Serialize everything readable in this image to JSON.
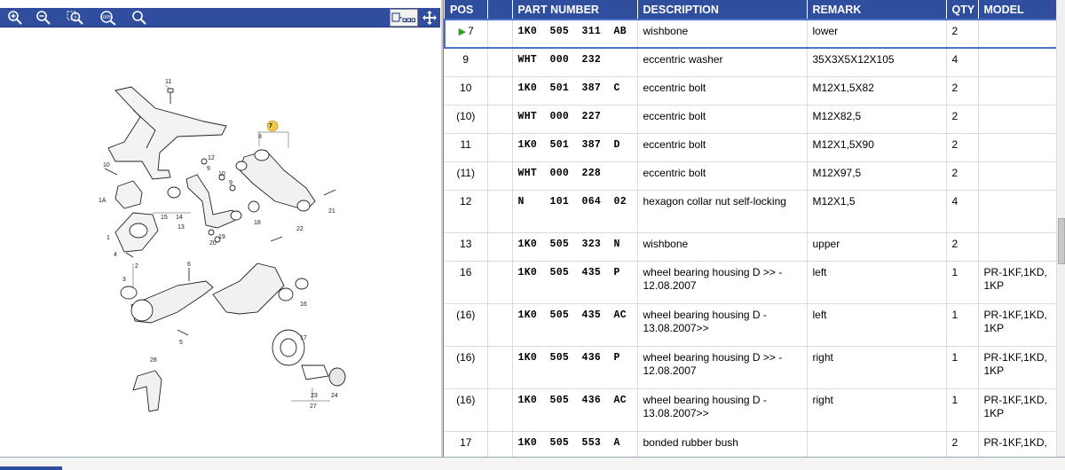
{
  "toolbar": {
    "buttons": [
      {
        "name": "zoom-in",
        "icon": "zoom-in-icon"
      },
      {
        "name": "zoom-out",
        "icon": "zoom-out-icon"
      },
      {
        "name": "zoom-area",
        "icon": "zoom-area-icon"
      },
      {
        "name": "zoom-100",
        "icon": "zoom-100-icon",
        "label": "100%"
      },
      {
        "name": "search",
        "icon": "search-icon"
      }
    ],
    "right_buttons": [
      {
        "name": "hotspot-list",
        "icon": "hotspot-list-icon"
      },
      {
        "name": "split-resize",
        "icon": "arrow-cross-icon"
      }
    ]
  },
  "diagram": {
    "labels": [
      "11",
      "7",
      "8",
      "10",
      "12",
      "9",
      "10",
      "9",
      "1A",
      "15",
      "14",
      "13",
      "19",
      "20",
      "18",
      "21",
      "22",
      "16",
      "1",
      "4",
      "2",
      "3",
      "6",
      "5",
      "17",
      "28",
      "23",
      "24",
      "27"
    ],
    "highlight_label": "7"
  },
  "table": {
    "headers": {
      "pos": "POS",
      "flag": "",
      "part_number": "PART NUMBER",
      "description": "DESCRIPTION",
      "remark": "REMARK",
      "qty": "QTY",
      "model": "MODEL"
    },
    "rows": [
      {
        "pos": "7",
        "part_number": "1K0  505  311  AB",
        "description": "wishbone",
        "remark": "lower",
        "qty": "2",
        "model": "",
        "selected": true
      },
      {
        "pos": "9",
        "part_number": "WHT  000  232",
        "description": "eccentric washer",
        "remark": "35X3X5X12X105",
        "qty": "4",
        "model": ""
      },
      {
        "pos": "10",
        "part_number": "1K0  501  387  C",
        "description": "eccentric bolt",
        "remark": "M12X1,5X82",
        "qty": "2",
        "model": ""
      },
      {
        "pos": "(10)",
        "part_number": "WHT  000  227",
        "description": "eccentric bolt",
        "remark": "M12X82,5",
        "qty": "2",
        "model": ""
      },
      {
        "pos": "11",
        "part_number": "1K0  501  387  D",
        "description": "eccentric bolt",
        "remark": "M12X1,5X90",
        "qty": "2",
        "model": ""
      },
      {
        "pos": "(11)",
        "part_number": "WHT  000  228",
        "description": "eccentric bolt",
        "remark": "M12X97,5",
        "qty": "2",
        "model": ""
      },
      {
        "pos": "12",
        "part_number": "N    101  064  02",
        "description": "hexagon collar nut self-locking",
        "remark": "M12X1,5",
        "qty": "4",
        "model": ""
      },
      {
        "pos": "13",
        "part_number": "1K0  505  323  N",
        "description": "wishbone",
        "remark": "upper",
        "qty": "2",
        "model": ""
      },
      {
        "pos": "16",
        "part_number": "1K0  505  435  P",
        "description": "wheel bearing housing D            >> - 12.08.2007",
        "remark": "left",
        "qty": "1",
        "model": "PR-1KF,1KD, 1KP"
      },
      {
        "pos": "(16)",
        "part_number": "1K0  505  435  AC",
        "description": "wheel bearing housing D - 13.08.2007>>",
        "remark": "left",
        "qty": "1",
        "model": "PR-1KF,1KD, 1KP"
      },
      {
        "pos": "(16)",
        "part_number": "1K0  505  436  P",
        "description": "wheel bearing housing D            >> - 12.08.2007",
        "remark": "right",
        "qty": "1",
        "model": "PR-1KF,1KD, 1KP"
      },
      {
        "pos": "(16)",
        "part_number": "1K0  505  436  AC",
        "description": "wheel bearing housing D - 13.08.2007>>",
        "remark": "right",
        "qty": "1",
        "model": "PR-1KF,1KD, 1KP"
      },
      {
        "pos": "17",
        "part_number": "1K0  505  553  A",
        "description": "bonded rubber bush",
        "remark": "",
        "qty": "2",
        "model": "PR-1KF,1KD,"
      }
    ]
  },
  "colors": {
    "header_bg": "#2f4f9e",
    "selected_border": "#4a6fc7",
    "arrow": "#2aa12a",
    "callout": "#f2c94c"
  }
}
